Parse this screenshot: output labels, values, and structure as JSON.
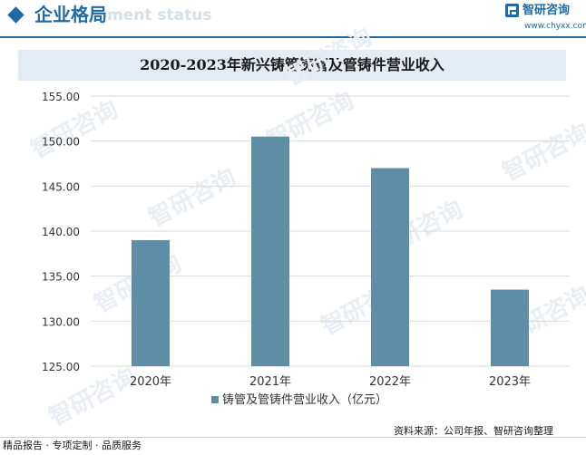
{
  "header": {
    "section_title": "企业格局",
    "section_subtitle_ghost": "ment status",
    "brand_name": "智研咨询",
    "brand_url": "www.chyxx.com"
  },
  "chart_data": {
    "type": "bar",
    "title": "2020-2023年新兴铸管铸管及管铸件营业收入",
    "categories": [
      "2020年",
      "2021年",
      "2022年",
      "2023年"
    ],
    "series": [
      {
        "name": "铸管及管铸件营业收入（亿元）",
        "values": [
          139.0,
          150.5,
          147.0,
          133.5
        ]
      }
    ],
    "ylim": [
      125,
      155
    ],
    "yticks": [
      "155.00",
      "150.00",
      "145.00",
      "140.00",
      "135.00",
      "130.00",
      "125.00"
    ],
    "xlabel": "",
    "ylabel": "",
    "grid": true,
    "legend": "bottom",
    "bar_color": "#5d8ea6"
  },
  "footer": {
    "left_text": "精品报告 · 专项定制 · 品质服务",
    "source": "资料来源：公司年报、智研咨询整理"
  },
  "watermark": {
    "text": "智研咨询"
  },
  "colors": {
    "accent": "#1e6aa6",
    "title_bar": "#e3ecf4",
    "gridline": "#d9d9d9"
  }
}
